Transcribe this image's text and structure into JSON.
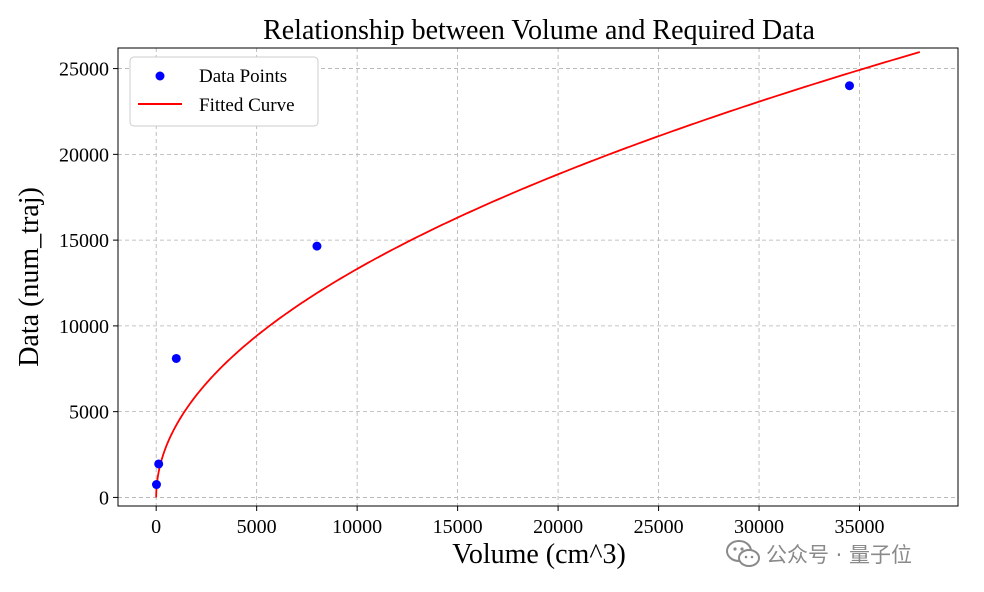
{
  "chart_data": {
    "type": "scatter",
    "title": "Relationship between Volume and Required Data",
    "xlabel": "Volume (cm^3)",
    "ylabel": "Data (num_traj)",
    "xlim": [
      -1900,
      39900
    ],
    "ylim": [
      -500,
      26200
    ],
    "xticks": [
      0,
      5000,
      10000,
      15000,
      20000,
      25000,
      30000,
      35000
    ],
    "yticks": [
      0,
      5000,
      10000,
      15000,
      20000,
      25000
    ],
    "xtick_labels": [
      "0",
      "5000",
      "10000",
      "15000",
      "20000",
      "25000",
      "30000",
      "35000"
    ],
    "ytick_labels": [
      "0",
      "5000",
      "10000",
      "15000",
      "20000",
      "25000"
    ],
    "grid": true,
    "legend_position": "top-left",
    "series": [
      {
        "name": "Data Points",
        "kind": "scatter",
        "color": "#0000ff",
        "x": [
          15,
          125,
          1000,
          8000,
          34500
        ],
        "y": [
          750,
          1950,
          8100,
          14650,
          24000
        ]
      },
      {
        "name": "Fitted Curve",
        "kind": "line",
        "color": "#ff0000",
        "x_range": [
          0,
          38000
        ],
        "model": {
          "a": 133.2,
          "b": 0.5
        }
      }
    ]
  },
  "watermark": {
    "text": "公众号 · 量子位",
    "icon": "wechat-icon"
  }
}
